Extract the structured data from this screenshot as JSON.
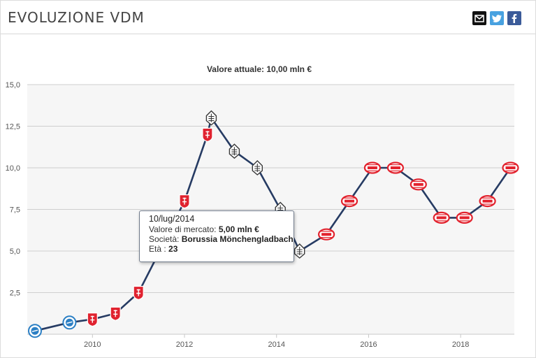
{
  "header": {
    "title": "EVOLUZIONE VDM",
    "share_icons": [
      "email-icon",
      "twitter-icon",
      "facebook-icon"
    ]
  },
  "chart_data": {
    "type": "line",
    "title": "Valore attuale: 10,00 mln €",
    "xlabel": "",
    "ylabel": "",
    "ylim": [
      0,
      15
    ],
    "xlim": [
      "2008-08",
      "2019-03"
    ],
    "yticks": [
      "15,0",
      "12,5",
      "10,0",
      "7,5",
      "5,0",
      "2,5"
    ],
    "xticks": [
      "2010",
      "2012",
      "2014",
      "2016",
      "2018"
    ],
    "grid": true,
    "line_color": "#263b63",
    "points": [
      {
        "date": "2008-10",
        "value": 0.2,
        "club": "ghost-wheel"
      },
      {
        "date": "2009-07",
        "value": 0.7,
        "club": "ghost-wheel"
      },
      {
        "date": "2010-01",
        "value": 0.9,
        "club": "red-shield"
      },
      {
        "date": "2010-07",
        "value": 1.25,
        "club": "red-shield"
      },
      {
        "date": "2011-01",
        "value": 2.5,
        "club": "red-shield"
      },
      {
        "date": "2011-07",
        "value": 5.2,
        "club": "red-shield"
      },
      {
        "date": "2012-01",
        "value": 8.0,
        "club": "red-shield"
      },
      {
        "date": "2012-07",
        "value": 12.0,
        "club": "red-shield"
      },
      {
        "date": "2012-08",
        "value": 13.0,
        "club": "gladbach"
      },
      {
        "date": "2013-02",
        "value": 11.0,
        "club": "gladbach"
      },
      {
        "date": "2013-08",
        "value": 10.0,
        "club": "gladbach"
      },
      {
        "date": "2014-02",
        "value": 7.5,
        "club": "gladbach"
      },
      {
        "date": "2014-07",
        "value": 5.0,
        "club": "gladbach"
      },
      {
        "date": "2015-02",
        "value": 6.0,
        "club": "psv"
      },
      {
        "date": "2015-08",
        "value": 8.0,
        "club": "psv"
      },
      {
        "date": "2016-02",
        "value": 10.0,
        "club": "psv"
      },
      {
        "date": "2016-08",
        "value": 10.0,
        "club": "psv"
      },
      {
        "date": "2017-02",
        "value": 9.0,
        "club": "psv"
      },
      {
        "date": "2017-08",
        "value": 7.0,
        "club": "psv"
      },
      {
        "date": "2018-02",
        "value": 7.0,
        "club": "psv"
      },
      {
        "date": "2018-08",
        "value": 8.0,
        "club": "psv"
      },
      {
        "date": "2019-02",
        "value": 10.0,
        "club": "psv"
      }
    ],
    "club_colors": {
      "ghost-wheel": "#2b7fc4",
      "red-shield": "#e0222f",
      "gladbach": "#3a3a3a",
      "psv": "#e2222d"
    }
  },
  "tooltip": {
    "date": "10/lug/2014",
    "market_value_label": "Valore di mercato: ",
    "market_value": "5,00 mln €",
    "club_label": "Società: ",
    "club": "Borussia Mönchengladbach",
    "age_label": "Età : ",
    "age": "23"
  }
}
